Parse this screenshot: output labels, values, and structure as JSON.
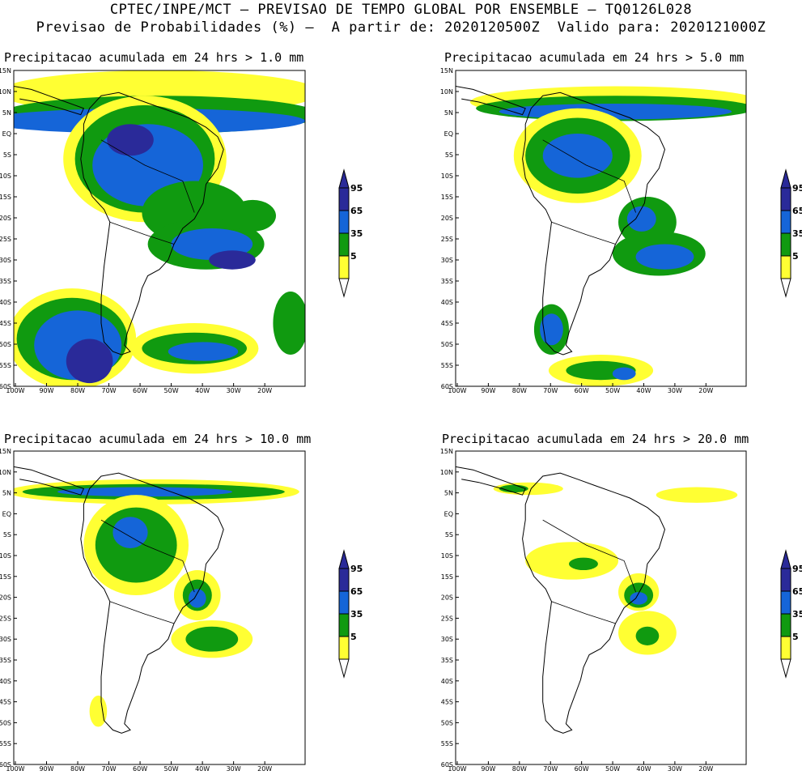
{
  "header": {
    "line1": "CPTEC/INPE/MCT – PREVISAO DE TEMPO GLOBAL POR ENSEMBLE – TQ0126L028",
    "line2": "Previsao de Probabilidades (%) –  A partir de: 2020120500Z  Valido para: 2020121000Z"
  },
  "panels": [
    {
      "title": "Precipitacao acumulada em 24 hrs > 1.0 mm"
    },
    {
      "title": "Precipitacao acumulada em 24 hrs > 5.0 mm"
    },
    {
      "title": "Precipitacao acumulada em 24 hrs > 10.0 mm"
    },
    {
      "title": "Precipitacao acumulada em 24 hrs > 20.0 mm"
    }
  ],
  "lat_labels": [
    "15N",
    "10N",
    "5N",
    "EQ",
    "5S",
    "10S",
    "15S",
    "20S",
    "25S",
    "30S",
    "35S",
    "40S",
    "45S",
    "50S",
    "55S",
    "60S"
  ],
  "lon_labels": [
    "100W",
    "90W",
    "80W",
    "70W",
    "60W",
    "50W",
    "40W",
    "30W",
    "20W"
  ],
  "colorbar": {
    "labels": [
      "95",
      "65",
      "35",
      "5"
    ],
    "colors": {
      "c5": "#ffff33",
      "c35": "#109a10",
      "c65": "#1565d8",
      "c95": "#2a2a99"
    }
  }
}
